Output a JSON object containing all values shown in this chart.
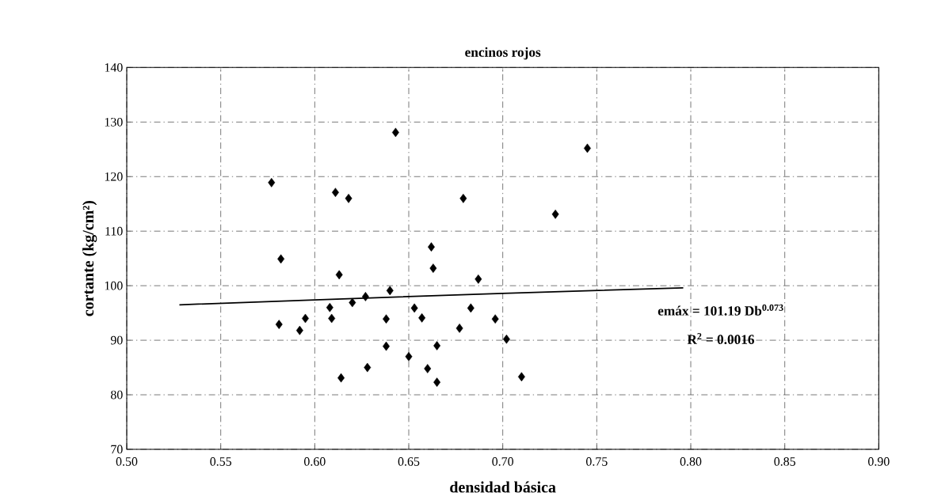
{
  "chart_data": {
    "type": "scatter",
    "title": "encinos rojos",
    "xlabel": "densidad básica",
    "ylabel": "cortante (kg/cm²)",
    "annotations": [
      "emáx = 101.19 Db$^{0.073}$",
      "R$^{2}$ = 0.0016"
    ],
    "xlim": [
      0.5,
      0.9
    ],
    "xticks": [
      {
        "value": 0.5,
        "label": "0.50"
      },
      {
        "value": 0.55,
        "label": "0.55"
      },
      {
        "value": 0.6,
        "label": "0.60"
      },
      {
        "value": 0.65,
        "label": "0.65"
      },
      {
        "value": 0.7,
        "label": "0.70"
      },
      {
        "value": 0.75,
        "label": "0.75"
      },
      {
        "value": 0.8,
        "label": "0.80"
      },
      {
        "value": 0.85,
        "label": "0.85"
      },
      {
        "value": 0.9,
        "label": "0.90"
      }
    ],
    "ylim": [
      70,
      140
    ],
    "yticks": [
      70,
      80,
      90,
      100,
      110,
      120,
      130,
      140
    ],
    "grid": true,
    "marker": "diamond",
    "series": [
      {
        "color": "#000000",
        "x": [
          0.643,
          0.577,
          0.611,
          0.618,
          0.582,
          0.662,
          0.663,
          0.613,
          0.64,
          0.627,
          0.62,
          0.608,
          0.653,
          0.609,
          0.595,
          0.638,
          0.657,
          0.581,
          0.592,
          0.638,
          0.665,
          0.65,
          0.628,
          0.66,
          0.614,
          0.665,
          0.745,
          0.679,
          0.728,
          0.687,
          0.683,
          0.696,
          0.677,
          0.702,
          0.71
        ],
        "values": [
          128.1,
          118.9,
          117.1,
          116.0,
          104.9,
          107.1,
          103.2,
          102.0,
          99.1,
          98.0,
          96.9,
          96.0,
          95.9,
          94.0,
          94.0,
          93.9,
          94.1,
          92.9,
          91.8,
          88.9,
          89.0,
          87.0,
          85.0,
          84.8,
          83.1,
          82.3,
          125.2,
          116.0,
          113.1,
          101.2,
          95.9,
          93.9,
          92.2,
          90.2,
          83.3
        ]
      },
      {
        "type": "line",
        "color": "#000000",
        "marker": "none",
        "line_style": "solid",
        "x": [
          0.528,
          0.6,
          0.7,
          0.796
        ],
        "values": [
          96.5,
          97.4,
          98.6,
          99.6
        ]
      }
    ]
  }
}
